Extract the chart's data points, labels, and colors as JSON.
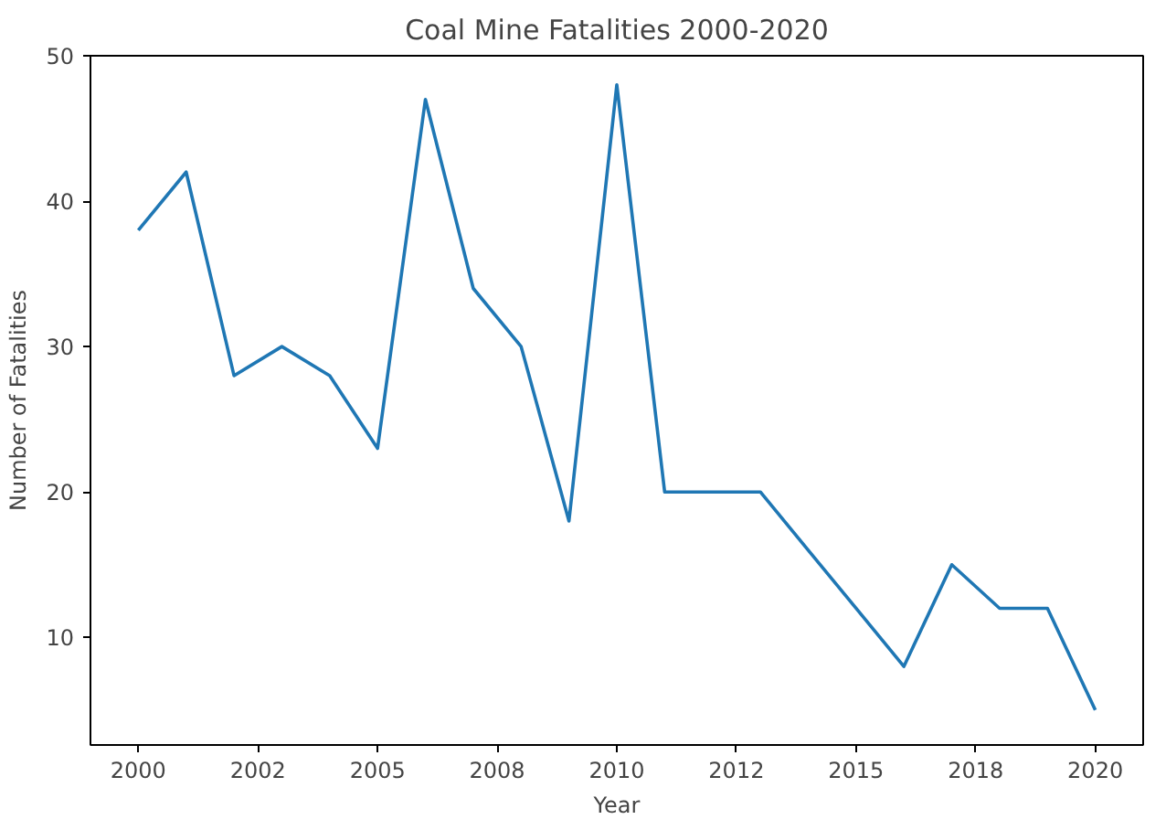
{
  "chart_data": {
    "type": "line",
    "title": "Coal Mine Fatalities 2000-2020",
    "xlabel": "Year",
    "ylabel": "Number of Fatalities",
    "x": [
      2000,
      2001,
      2002,
      2003,
      2004,
      2005,
      2006,
      2007,
      2008,
      2009,
      2010,
      2011,
      2012,
      2013,
      2014,
      2015,
      2016,
      2017,
      2018,
      2019,
      2020
    ],
    "series": [
      {
        "color": "#1f77b4",
        "values": [
          38,
          42,
          28,
          30,
          28,
          23,
          47,
          34,
          30,
          18,
          48,
          20,
          20,
          20,
          16,
          12,
          8,
          15,
          12,
          12,
          5
        ]
      }
    ],
    "xlim": [
      1999,
      2021
    ],
    "ylim": [
      2.6,
      50
    ],
    "xticks": [
      2000,
      {
        "value": 2002.5,
        "label": "2002"
      },
      2005,
      {
        "value": 2007.5,
        "label": "2008"
      },
      2010,
      {
        "value": 2012.5,
        "label": "2012"
      },
      2015,
      {
        "value": 2017.5,
        "label": "2018"
      },
      2020
    ],
    "yticks": [
      10,
      20,
      30,
      40,
      50
    ],
    "grid": false
  }
}
